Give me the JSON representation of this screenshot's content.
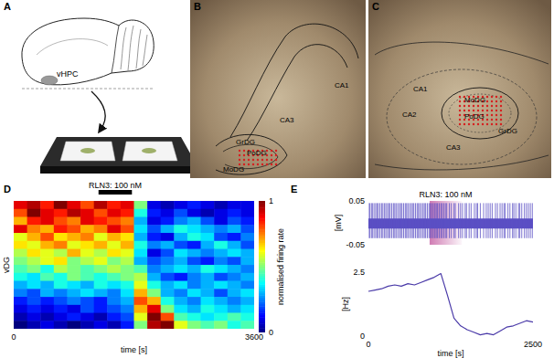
{
  "figure": {
    "panels": [
      {
        "label": "A",
        "texts": [
          "vHPC"
        ]
      },
      {
        "label": "B",
        "texts": [
          "CA1",
          "CA3",
          "GrDG",
          "PoDG",
          "MoDG"
        ]
      },
      {
        "label": "C",
        "texts": [
          "CA1",
          "CA2",
          "MoDG",
          "PoDG",
          "GrDG",
          "CA3"
        ]
      }
    ]
  },
  "chart_data": [
    {
      "panel": "D",
      "type": "heatmap",
      "x_label": "time [s]",
      "y_label": "vDG",
      "annotation": {
        "text": "RLN3: 100 nM",
        "start": 1270,
        "end": 1770
      },
      "xlim": [
        0,
        3600
      ],
      "xticks": [
        0,
        3600
      ],
      "tick_labels": "x",
      "bins": [
        0,
        200,
        400,
        600,
        800,
        1000,
        1200,
        1400,
        1600,
        1800,
        2000,
        2200,
        2400,
        2600,
        2800,
        3000,
        3200,
        3400,
        3600
      ],
      "cells": [
        [
          0.9,
          0.95,
          0.85,
          1.0,
          0.9,
          0.8,
          0.95,
          0.85,
          0.9,
          0.5,
          0.1,
          0.05,
          0.1,
          0.15,
          0.1,
          0.05,
          0.1,
          0.1
        ],
        [
          0.8,
          1.0,
          0.9,
          0.85,
          0.95,
          0.9,
          0.8,
          0.9,
          0.85,
          0.4,
          0.15,
          0.1,
          0.2,
          0.1,
          0.05,
          0.1,
          0.15,
          0.1
        ],
        [
          0.7,
          0.85,
          0.9,
          0.8,
          0.75,
          0.9,
          0.85,
          0.8,
          0.75,
          0.3,
          0.1,
          0.15,
          0.25,
          0.3,
          0.2,
          0.1,
          0.2,
          0.15
        ],
        [
          0.9,
          0.75,
          0.7,
          0.85,
          0.8,
          0.7,
          0.75,
          0.9,
          0.8,
          0.35,
          0.2,
          0.3,
          0.4,
          0.35,
          0.3,
          0.25,
          0.3,
          0.2
        ],
        [
          0.6,
          0.7,
          0.8,
          0.65,
          0.7,
          0.75,
          0.6,
          0.7,
          0.65,
          0.3,
          0.15,
          0.1,
          0.3,
          0.4,
          0.35,
          0.2,
          0.15,
          0.25
        ],
        [
          0.65,
          0.6,
          0.7,
          0.75,
          0.6,
          0.65,
          0.7,
          0.6,
          0.7,
          0.4,
          0.25,
          0.3,
          0.2,
          0.15,
          0.3,
          0.4,
          0.3,
          0.2
        ],
        [
          0.55,
          0.65,
          0.6,
          0.55,
          0.7,
          0.6,
          0.55,
          0.65,
          0.6,
          0.35,
          0.1,
          0.2,
          0.35,
          0.3,
          0.25,
          0.3,
          0.35,
          0.3
        ],
        [
          0.5,
          0.55,
          0.6,
          0.65,
          0.5,
          0.55,
          0.6,
          0.5,
          0.55,
          0.3,
          0.2,
          0.25,
          0.3,
          0.2,
          0.15,
          0.25,
          0.2,
          0.3
        ],
        [
          0.45,
          0.5,
          0.4,
          0.55,
          0.5,
          0.45,
          0.5,
          0.55,
          0.5,
          0.45,
          0.25,
          0.3,
          0.35,
          0.3,
          0.4,
          0.35,
          0.3,
          0.25
        ],
        [
          0.4,
          0.35,
          0.45,
          0.4,
          0.5,
          0.45,
          0.4,
          0.45,
          0.5,
          0.55,
          0.3,
          0.2,
          0.15,
          0.25,
          0.3,
          0.2,
          0.25,
          0.3
        ],
        [
          0.3,
          0.35,
          0.3,
          0.4,
          0.35,
          0.3,
          0.4,
          0.35,
          0.4,
          0.6,
          0.4,
          0.3,
          0.35,
          0.25,
          0.3,
          0.35,
          0.3,
          0.25
        ],
        [
          0.25,
          0.2,
          0.3,
          0.25,
          0.3,
          0.35,
          0.3,
          0.25,
          0.35,
          0.7,
          0.5,
          0.3,
          0.25,
          0.35,
          0.3,
          0.2,
          0.3,
          0.35
        ],
        [
          0.15,
          0.2,
          0.15,
          0.2,
          0.25,
          0.2,
          0.15,
          0.25,
          0.3,
          0.8,
          0.7,
          0.4,
          0.3,
          0.25,
          0.35,
          0.3,
          0.25,
          0.3
        ],
        [
          0.1,
          0.15,
          0.1,
          0.15,
          0.1,
          0.2,
          0.15,
          0.2,
          0.25,
          0.7,
          0.9,
          0.5,
          0.35,
          0.3,
          0.4,
          0.35,
          0.3,
          0.35
        ],
        [
          0.05,
          0.1,
          0.05,
          0.1,
          0.15,
          0.1,
          0.05,
          0.15,
          0.2,
          0.6,
          1.0,
          0.8,
          0.45,
          0.4,
          0.35,
          0.4,
          0.45,
          0.4
        ],
        [
          0.0,
          0.05,
          0.1,
          0.05,
          0.0,
          0.05,
          0.1,
          0.05,
          0.15,
          0.5,
          0.95,
          1.0,
          0.6,
          0.5,
          0.45,
          0.5,
          0.4,
          0.45
        ]
      ],
      "colorbar": {
        "label": "normalised firing rate",
        "range": [
          0,
          1
        ],
        "ticks": [
          0,
          1
        ]
      }
    },
    {
      "panel": "E",
      "type": "line",
      "x_label": "time [s]",
      "annotation": {
        "text": "RLN3: 100 nM",
        "start": 930,
        "end": 1420
      },
      "xlim": [
        0,
        2500
      ],
      "xticks": [
        0,
        2500
      ],
      "subplots": [
        {
          "type": "spikes",
          "y_label": "[mV]",
          "ylim": [
            -0.05,
            0.05
          ],
          "yticks": [
            -0.05,
            0.05
          ],
          "color": "#5b4fc4",
          "noise_range": [
            -0.012,
            0.01
          ],
          "spike_range": [
            -0.035,
            0.045
          ],
          "spike_times": [
            0,
            20,
            45,
            60,
            85,
            110,
            130,
            150,
            175,
            200,
            220,
            245,
            265,
            290,
            310,
            330,
            355,
            380,
            400,
            420,
            445,
            470,
            490,
            510,
            535,
            560,
            580,
            600,
            625,
            650,
            670,
            690,
            715,
            740,
            760,
            780,
            805,
            830,
            850,
            870,
            895,
            920,
            940,
            960,
            985,
            1010,
            1030,
            1050,
            1075,
            1100,
            1120,
            1145,
            1170,
            1190,
            1230,
            1260,
            1300,
            1320,
            1370,
            1400,
            1430,
            1470,
            1490,
            1530,
            1560,
            1610,
            1640,
            1660,
            1700,
            1750,
            1790,
            1820,
            1850,
            1880,
            1930,
            1960,
            2000,
            2030,
            2060,
            2080,
            2120,
            2150,
            2190,
            2210,
            2240,
            2280,
            2300,
            2330,
            2370,
            2400,
            2430,
            2460,
            2490
          ]
        },
        {
          "type": "line",
          "y_label": "[Hz]",
          "ylim": [
            0,
            2.5
          ],
          "yticks": [
            0,
            2.5
          ],
          "color": "#4a3aa8",
          "x": [
            0,
            100,
            200,
            300,
            400,
            500,
            600,
            700,
            800,
            900,
            1000,
            1100,
            1200,
            1300,
            1400,
            1500,
            1600,
            1700,
            1800,
            1900,
            2000,
            2100,
            2200,
            2300,
            2400,
            2500
          ],
          "values": [
            1.75,
            1.8,
            1.85,
            1.95,
            2.0,
            1.95,
            2.05,
            2.0,
            2.1,
            2.2,
            2.3,
            2.45,
            1.6,
            0.7,
            0.4,
            0.25,
            0.15,
            0.05,
            0.1,
            0.05,
            0.2,
            0.35,
            0.4,
            0.5,
            0.6,
            0.55
          ]
        }
      ]
    }
  ]
}
